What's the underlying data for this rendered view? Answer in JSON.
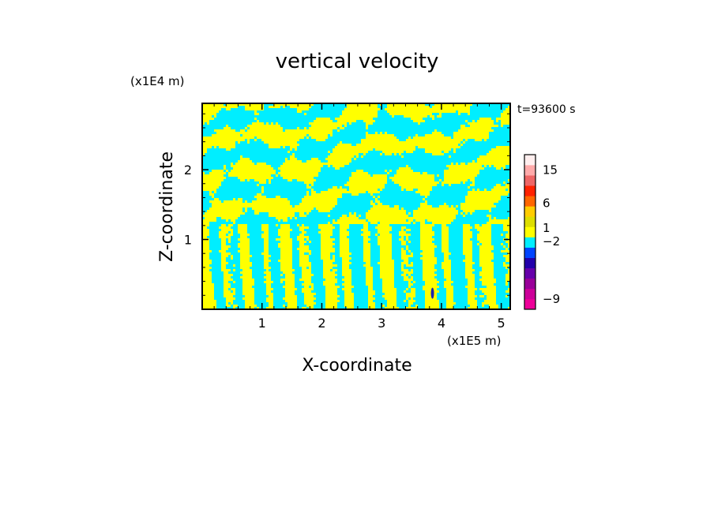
{
  "chart_data": {
    "type": "heatmap",
    "title": "vertical velocity",
    "xlabel": "X-coordinate",
    "ylabel": "Z-coordinate",
    "x_unit": "(x1E5 m)",
    "y_unit": "(x1E4 m)",
    "time_label": "t=93600 s",
    "xlim": [
      0,
      5.15
    ],
    "ylim": [
      0,
      2.95
    ],
    "x_ticks": [
      {
        "value": 1,
        "label": "1"
      },
      {
        "value": 2,
        "label": "2"
      },
      {
        "value": 3,
        "label": "3"
      },
      {
        "value": 4,
        "label": "4"
      },
      {
        "value": 5,
        "label": "5"
      }
    ],
    "y_ticks": [
      {
        "value": 1,
        "label": "1"
      },
      {
        "value": 2,
        "label": "2"
      }
    ],
    "field_colors": {
      "positive": "#ffff00",
      "negative": "#00eeff",
      "strong_negative": "#2222aa"
    },
    "colorbar": {
      "levels": [
        {
          "color": "#ee0099"
        },
        {
          "color": "#cc0099"
        },
        {
          "color": "#990099"
        },
        {
          "color": "#6600aa"
        },
        {
          "color": "#2200aa"
        },
        {
          "color": "#0044ff"
        },
        {
          "color": "#00eeff"
        },
        {
          "color": "#ffff00"
        },
        {
          "color": "#dddd00"
        },
        {
          "color": "#ffcc00"
        },
        {
          "color": "#ff6600"
        },
        {
          "color": "#ff2200"
        },
        {
          "color": "#ee6666"
        },
        {
          "color": "#ffaaaa"
        },
        {
          "color": "#ffeeee"
        }
      ],
      "labels": [
        {
          "text": "15",
          "level": 13.5
        },
        {
          "text": "6",
          "level": 10.3
        },
        {
          "text": "1",
          "level": 7.9
        },
        {
          "text": "−2",
          "level": 6.6
        },
        {
          "text": "−9",
          "level": 1.0
        }
      ]
    }
  }
}
